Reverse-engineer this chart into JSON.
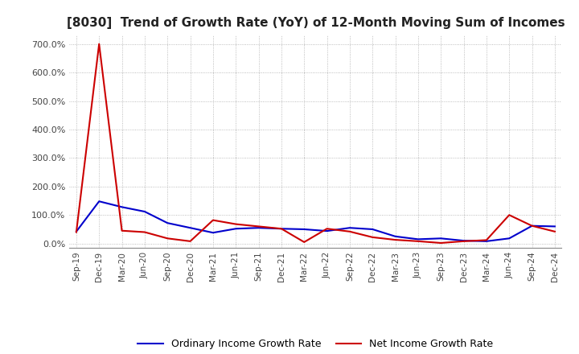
{
  "title": "[8030]  Trend of Growth Rate (YoY) of 12-Month Moving Sum of Incomes",
  "title_fontsize": 11,
  "background_color": "#ffffff",
  "grid_color": "#aaaaaa",
  "ordinary_color": "#0000cc",
  "net_color": "#cc0000",
  "legend_ordinary": "Ordinary Income Growth Rate",
  "legend_net": "Net Income Growth Rate",
  "x_labels": [
    "Sep-19",
    "Dec-19",
    "Mar-20",
    "Jun-20",
    "Sep-20",
    "Dec-20",
    "Mar-21",
    "Jun-21",
    "Sep-21",
    "Dec-21",
    "Mar-22",
    "Jun-22",
    "Sep-22",
    "Dec-22",
    "Mar-23",
    "Jun-23",
    "Sep-23",
    "Dec-23",
    "Mar-24",
    "Jun-24",
    "Sep-24",
    "Dec-24"
  ],
  "ylim": [
    -0.15,
    7.3
  ],
  "ytick_vals": [
    0.0,
    1.0,
    2.0,
    3.0,
    4.0,
    5.0,
    6.0,
    7.0
  ],
  "ytick_labels": [
    "0.0%",
    "100.0%",
    "200.0%",
    "300.0%",
    "400.0%",
    "500.0%",
    "600.0%",
    "700.0%"
  ],
  "ordinary_data": [
    0.42,
    1.48,
    1.28,
    1.12,
    0.72,
    0.55,
    0.38,
    0.52,
    0.55,
    0.52,
    0.5,
    0.44,
    0.55,
    0.5,
    0.25,
    0.15,
    0.18,
    0.1,
    0.08,
    0.18,
    0.62,
    0.6
  ],
  "net_data": [
    0.4,
    7.0,
    0.45,
    0.4,
    0.18,
    0.08,
    0.82,
    0.68,
    0.6,
    0.52,
    0.05,
    0.52,
    0.42,
    0.22,
    0.13,
    0.08,
    0.02,
    0.08,
    0.12,
    1.0,
    0.62,
    0.42
  ]
}
